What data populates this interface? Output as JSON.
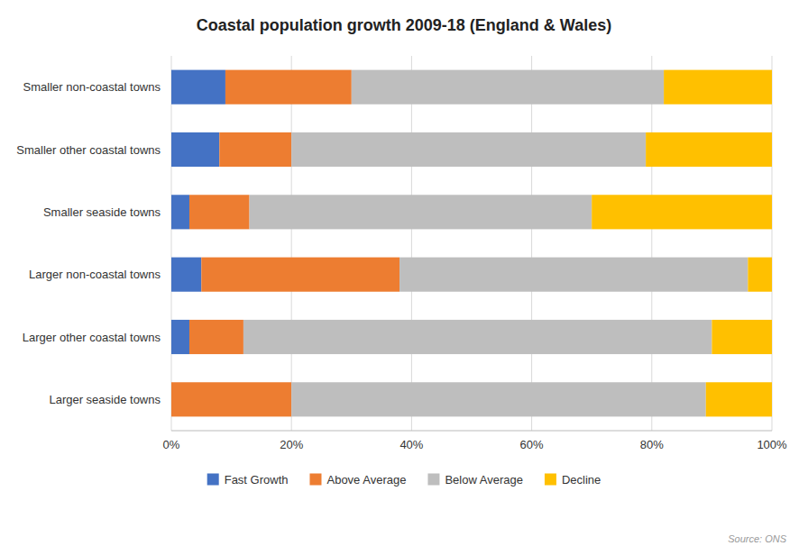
{
  "chart_data": {
    "type": "bar",
    "orientation": "horizontal",
    "stacked": true,
    "title": "Coastal population growth 2009-18 (England & Wales)",
    "categories": [
      "Smaller non-coastal towns",
      "Smaller other coastal towns",
      "Smaller seaside towns",
      "Larger non-coastal towns",
      "Larger other coastal towns",
      "Larger seaside towns"
    ],
    "series": [
      {
        "name": "Fast Growth",
        "color": "#4472C4",
        "values": [
          9,
          8,
          3,
          5,
          3,
          0
        ]
      },
      {
        "name": "Above Average",
        "color": "#ED7D31",
        "values": [
          21,
          12,
          10,
          33,
          9,
          20
        ]
      },
      {
        "name": "Below Average",
        "color": "#BEBEBE",
        "values": [
          52,
          59,
          57,
          58,
          78,
          69
        ]
      },
      {
        "name": "Decline",
        "color": "#FFC000",
        "values": [
          18,
          21,
          30,
          4,
          10,
          11
        ]
      }
    ],
    "xlim": [
      0,
      100
    ],
    "xticks": [
      {
        "value": 0,
        "label": "0%"
      },
      {
        "value": 20,
        "label": "20%"
      },
      {
        "value": 40,
        "label": "40%"
      },
      {
        "value": 60,
        "label": "60%"
      },
      {
        "value": 80,
        "label": "80%"
      },
      {
        "value": 100,
        "label": "100%"
      }
    ],
    "grid": true,
    "legend": "bottom",
    "annotations": [
      "Source: ONS"
    ]
  }
}
